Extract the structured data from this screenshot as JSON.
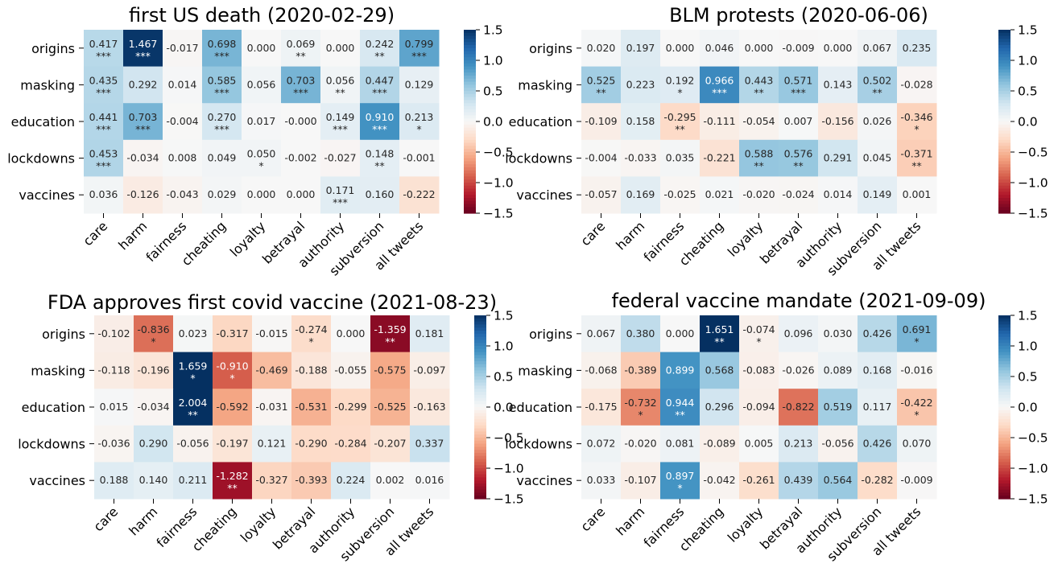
{
  "colorbar": {
    "ticks": [
      "1.5",
      "1.0",
      "0.5",
      "0.0",
      "−0.5",
      "−1.0",
      "−1.5"
    ],
    "vmin": -1.5,
    "vmax": 1.5
  },
  "chart_data": [
    {
      "type": "heatmap",
      "title": "first US death (2020-02-29)",
      "rows": [
        "origins",
        "masking",
        "education",
        "lockdowns",
        "vaccines"
      ],
      "columns": [
        "care",
        "harm",
        "fairness",
        "cheating",
        "loyalty",
        "betrayal",
        "authority",
        "subversion",
        "all tweets"
      ],
      "values": [
        [
          0.417,
          1.467,
          -0.017,
          0.698,
          0.0,
          0.069,
          0.0,
          0.242,
          0.799
        ],
        [
          0.435,
          0.292,
          0.014,
          0.585,
          0.056,
          0.703,
          0.056,
          0.447,
          0.129
        ],
        [
          0.441,
          0.703,
          -0.004,
          0.27,
          0.017,
          -0.0,
          0.149,
          0.91,
          0.213
        ],
        [
          0.453,
          -0.034,
          0.008,
          0.049,
          0.05,
          -0.002,
          -0.027,
          0.148,
          -0.001
        ],
        [
          0.036,
          -0.126,
          -0.043,
          0.029,
          0.0,
          0.0,
          0.171,
          0.16,
          -0.222
        ]
      ],
      "labels": [
        [
          "0.417",
          "1.467",
          "-0.017",
          "0.698",
          "0.000",
          "0.069",
          "0.000",
          "0.242",
          "0.799"
        ],
        [
          "0.435",
          "0.292",
          "0.014",
          "0.585",
          "0.056",
          "0.703",
          "0.056",
          "0.447",
          "0.129"
        ],
        [
          "0.441",
          "0.703",
          "-0.004",
          "0.270",
          "0.017",
          "-0.000",
          "0.149",
          "0.910",
          "0.213"
        ],
        [
          "0.453",
          "-0.034",
          "0.008",
          "0.049",
          "0.050",
          "-0.002",
          "-0.027",
          "0.148",
          "-0.001"
        ],
        [
          "0.036",
          "-0.126",
          "-0.043",
          "0.029",
          "0.000",
          "0.000",
          "0.171",
          "0.160",
          "-0.222"
        ]
      ],
      "significance": [
        [
          "***",
          "***",
          "",
          "***",
          "",
          "**",
          "",
          "**",
          "***"
        ],
        [
          "***",
          "",
          "",
          "***",
          "",
          "***",
          "**",
          "***",
          ""
        ],
        [
          "***",
          "***",
          "",
          "***",
          "",
          "",
          "***",
          "***",
          "*"
        ],
        [
          "***",
          "",
          "",
          "",
          "*",
          "",
          "",
          "**",
          ""
        ],
        [
          "",
          "",
          "",
          "",
          "",
          "",
          "***",
          "",
          ""
        ]
      ],
      "colormap": "RdBu",
      "vmin": -1.5,
      "vmax": 1.5
    },
    {
      "type": "heatmap",
      "title": "BLM protests (2020-06-06)",
      "rows": [
        "origins",
        "masking",
        "education",
        "lockdowns",
        "vaccines"
      ],
      "columns": [
        "care",
        "harm",
        "fairness",
        "cheating",
        "loyalty",
        "betrayal",
        "authority",
        "subversion",
        "all tweets"
      ],
      "values": [
        [
          0.02,
          0.197,
          0.0,
          0.046,
          0.0,
          -0.009,
          0.0,
          0.067,
          0.235
        ],
        [
          0.525,
          0.223,
          0.192,
          0.966,
          0.443,
          0.571,
          0.143,
          0.502,
          -0.028
        ],
        [
          -0.109,
          0.158,
          -0.295,
          -0.111,
          -0.054,
          0.007,
          -0.156,
          0.026,
          -0.346
        ],
        [
          -0.004,
          -0.033,
          0.035,
          -0.221,
          0.588,
          0.576,
          0.291,
          0.045,
          -0.371
        ],
        [
          -0.057,
          0.169,
          -0.025,
          0.021,
          -0.02,
          -0.024,
          0.014,
          0.149,
          0.001
        ]
      ],
      "labels": [
        [
          "0.020",
          "0.197",
          "0.000",
          "0.046",
          "0.000",
          "-0.009",
          "0.000",
          "0.067",
          "0.235"
        ],
        [
          "0.525",
          "0.223",
          "0.192",
          "0.966",
          "0.443",
          "0.571",
          "0.143",
          "0.502",
          "-0.028"
        ],
        [
          "-0.109",
          "0.158",
          "-0.295",
          "-0.111",
          "-0.054",
          "0.007",
          "-0.156",
          "0.026",
          "-0.346"
        ],
        [
          "-0.004",
          "-0.033",
          "0.035",
          "-0.221",
          "0.588",
          "0.576",
          "0.291",
          "0.045",
          "-0.371"
        ],
        [
          "-0.057",
          "0.169",
          "-0.025",
          "0.021",
          "-0.020",
          "-0.024",
          "0.014",
          "0.149",
          "0.001"
        ]
      ],
      "significance": [
        [
          "",
          "",
          "",
          "",
          "",
          "",
          "",
          "",
          ""
        ],
        [
          "**",
          "",
          "*",
          "***",
          "**",
          "***",
          "",
          "**",
          ""
        ],
        [
          "",
          "",
          "**",
          "",
          "",
          "",
          "",
          "",
          "*"
        ],
        [
          "",
          "",
          "",
          "",
          "**",
          "**",
          "",
          "",
          "**"
        ],
        [
          "",
          "",
          "",
          "",
          "",
          "",
          "",
          "",
          ""
        ]
      ],
      "colormap": "RdBu",
      "vmin": -1.5,
      "vmax": 1.5
    },
    {
      "type": "heatmap",
      "title": "FDA approves first covid vaccine (2021-08-23)",
      "rows": [
        "origins",
        "masking",
        "education",
        "lockdowns",
        "vaccines"
      ],
      "columns": [
        "care",
        "harm",
        "fairness",
        "cheating",
        "loyalty",
        "betrayal",
        "authority",
        "subversion",
        "all tweets"
      ],
      "values": [
        [
          -0.102,
          -0.836,
          0.023,
          -0.317,
          -0.015,
          -0.274,
          0.0,
          -1.359,
          0.181
        ],
        [
          -0.118,
          -0.196,
          1.659,
          -0.91,
          -0.469,
          -0.188,
          -0.055,
          -0.575,
          -0.097
        ],
        [
          0.015,
          -0.034,
          2.004,
          -0.592,
          -0.031,
          -0.531,
          -0.299,
          -0.525,
          -0.163
        ],
        [
          -0.036,
          0.29,
          -0.056,
          -0.197,
          0.121,
          -0.29,
          -0.284,
          -0.207,
          0.337
        ],
        [
          0.188,
          0.14,
          0.211,
          -1.282,
          -0.327,
          -0.393,
          0.224,
          0.002,
          0.016
        ]
      ],
      "labels": [
        [
          "-0.102",
          "-0.836",
          "0.023",
          "-0.317",
          "-0.015",
          "-0.274",
          "0.000",
          "-1.359",
          "0.181"
        ],
        [
          "-0.118",
          "-0.196",
          "1.659",
          "-0.910",
          "-0.469",
          "-0.188",
          "-0.055",
          "-0.575",
          "-0.097"
        ],
        [
          "0.015",
          "-0.034",
          "2.004",
          "-0.592",
          "-0.031",
          "-0.531",
          "-0.299",
          "-0.525",
          "-0.163"
        ],
        [
          "-0.036",
          "0.290",
          "-0.056",
          "-0.197",
          "0.121",
          "-0.290",
          "-0.284",
          "-0.207",
          "0.337"
        ],
        [
          "0.188",
          "0.140",
          "0.211",
          "-1.282",
          "-0.327",
          "-0.393",
          "0.224",
          "0.002",
          "0.016"
        ]
      ],
      "significance": [
        [
          "",
          "*",
          "",
          "",
          "",
          "*",
          "",
          "**",
          ""
        ],
        [
          "",
          "",
          "*",
          "*",
          "",
          "",
          "",
          "",
          ""
        ],
        [
          "",
          "",
          "**",
          "",
          "",
          "",
          "",
          "",
          ""
        ],
        [
          "",
          "",
          "",
          "",
          "",
          "",
          "",
          "",
          ""
        ],
        [
          "",
          "",
          "",
          "**",
          "",
          "",
          "",
          "",
          ""
        ]
      ],
      "colormap": "RdBu",
      "vmin": -1.5,
      "vmax": 1.5
    },
    {
      "type": "heatmap",
      "title": "federal vaccine mandate (2021-09-09)",
      "rows": [
        "origins",
        "masking",
        "education",
        "lockdowns",
        "vaccines"
      ],
      "columns": [
        "care",
        "harm",
        "fairness",
        "cheating",
        "loyalty",
        "betrayal",
        "authority",
        "subversion",
        "all tweets"
      ],
      "values": [
        [
          0.067,
          0.38,
          0.0,
          1.651,
          -0.074,
          0.096,
          0.03,
          0.426,
          0.691
        ],
        [
          -0.068,
          -0.389,
          0.899,
          0.568,
          -0.083,
          -0.026,
          0.089,
          0.168,
          -0.016
        ],
        [
          -0.175,
          -0.732,
          0.944,
          0.296,
          -0.094,
          -0.822,
          0.519,
          0.117,
          -0.422
        ],
        [
          0.072,
          -0.02,
          0.081,
          -0.089,
          0.005,
          0.213,
          -0.056,
          0.426,
          0.07
        ],
        [
          0.033,
          -0.107,
          0.897,
          -0.042,
          -0.261,
          0.439,
          0.564,
          -0.282,
          -0.009
        ]
      ],
      "labels": [
        [
          "0.067",
          "0.380",
          "0.000",
          "1.651",
          "-0.074",
          "0.096",
          "0.030",
          "0.426",
          "0.691"
        ],
        [
          "-0.068",
          "-0.389",
          "0.899",
          "0.568",
          "-0.083",
          "-0.026",
          "0.089",
          "0.168",
          "-0.016"
        ],
        [
          "-0.175",
          "-0.732",
          "0.944",
          "0.296",
          "-0.094",
          "-0.822",
          "0.519",
          "0.117",
          "-0.422"
        ],
        [
          "0.072",
          "-0.020",
          "0.081",
          "-0.089",
          "0.005",
          "0.213",
          "-0.056",
          "0.426",
          "0.070"
        ],
        [
          "0.033",
          "-0.107",
          "0.897",
          "-0.042",
          "-0.261",
          "0.439",
          "0.564",
          "-0.282",
          "-0.009"
        ]
      ],
      "significance": [
        [
          "",
          "",
          "",
          "**",
          "*",
          "",
          "",
          "",
          "*"
        ],
        [
          "",
          "",
          "",
          "",
          "",
          "",
          "",
          "",
          ""
        ],
        [
          "",
          "*",
          "**",
          "",
          "",
          "",
          "",
          "",
          "*"
        ],
        [
          "",
          "",
          "",
          "",
          "",
          "",
          "",
          "",
          ""
        ],
        [
          "",
          "",
          "*",
          "",
          "",
          "",
          "",
          "",
          ""
        ]
      ],
      "colormap": "RdBu",
      "vmin": -1.5,
      "vmax": 1.5
    }
  ]
}
